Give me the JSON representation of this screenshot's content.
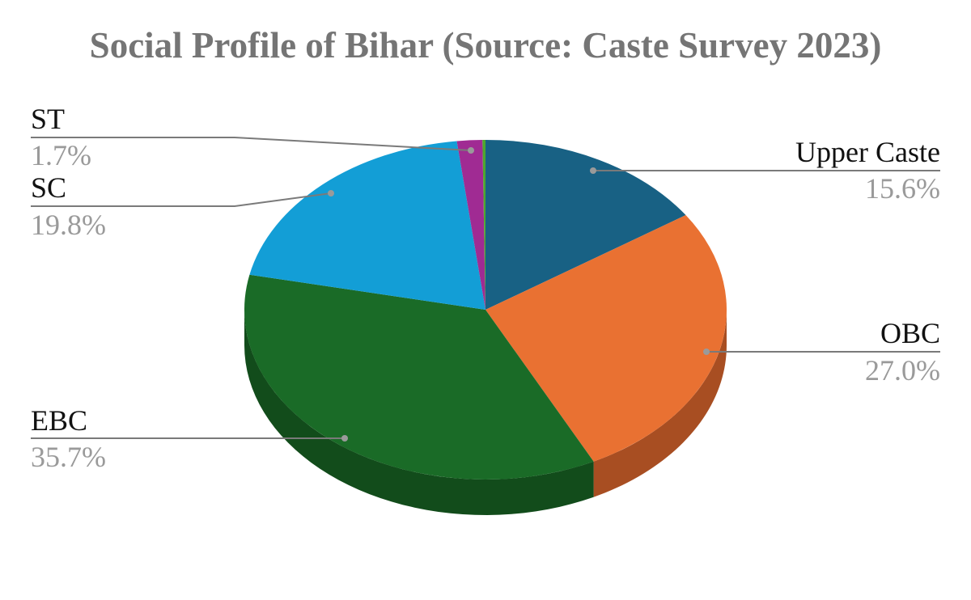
{
  "chart_data": {
    "type": "pie",
    "title": "Social Profile of Bihar (Source: Caste Survey 2023)",
    "slices": [
      {
        "label": "Upper Caste",
        "value": 15.6,
        "display": "15.6%",
        "color": "#186184",
        "side_color": "#104560",
        "label_side": "right"
      },
      {
        "label": "OBC",
        "value": 27.0,
        "display": "27.0%",
        "color": "#E97132",
        "side_color": "#A84E22",
        "label_side": "right"
      },
      {
        "label": "EBC",
        "value": 35.7,
        "display": "35.7%",
        "color": "#1A6B27",
        "side_color": "#124C1B",
        "label_side": "left"
      },
      {
        "label": "SC",
        "value": 19.8,
        "display": "19.8%",
        "color": "#139ED6",
        "side_color": "#0E73A0",
        "label_side": "left"
      },
      {
        "label": "ST",
        "value": 1.7,
        "display": "1.7%",
        "color": "#A02B93",
        "side_color": "#761F6C",
        "label_side": "left"
      },
      {
        "label": "",
        "value": 0.2,
        "display": "",
        "color": "#4EA72E",
        "side_color": "#3A7D22",
        "label_side": "none"
      }
    ],
    "start_angle_deg": 0,
    "direction": "clockwise",
    "legend": "none",
    "style": "3d"
  }
}
